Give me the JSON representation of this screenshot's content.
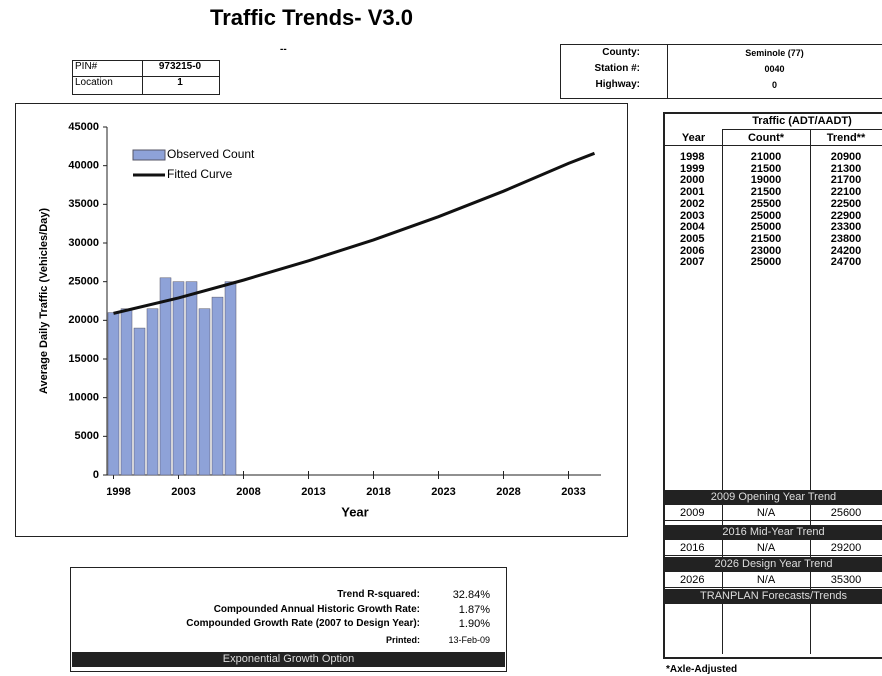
{
  "header": {
    "title": "Traffic Trends- V3.0",
    "subtitle": "--"
  },
  "pin_box": {
    "rows": [
      [
        "PIN#",
        "973215-0"
      ],
      [
        "Location",
        "1"
      ]
    ]
  },
  "station_box": {
    "rows": [
      [
        "County:",
        "Seminole (77)"
      ],
      [
        "Station #:",
        "0040"
      ],
      [
        "Highway:",
        "0"
      ]
    ]
  },
  "chart_data": {
    "type": "bar",
    "x": [
      1998,
      1999,
      2000,
      2001,
      2002,
      2003,
      2004,
      2005,
      2006,
      2007
    ],
    "series": [
      {
        "name": "Observed Count",
        "color": "#8ea2d8",
        "values": [
          21000,
          21500,
          19000,
          21500,
          25500,
          25000,
          25000,
          21500,
          23000,
          25000
        ]
      },
      {
        "name": "Fitted Curve",
        "type": "line",
        "color": "#111111",
        "x": [
          1998,
          2003,
          2008,
          2013,
          2018,
          2023,
          2028,
          2033,
          2035
        ],
        "values": [
          20900,
          22900,
          25200,
          27700,
          30400,
          33400,
          36700,
          40300,
          41600
        ]
      }
    ],
    "xlabel": "Year",
    "ylabel": "Average Daily Traffic (Vehicles/Day)",
    "xlim": [
      1997.5,
      2035.5
    ],
    "xticks": [
      1998,
      2003,
      2008,
      2013,
      2018,
      2023,
      2028,
      2033
    ],
    "ylim": [
      0,
      45000
    ],
    "yticks": [
      0,
      5000,
      10000,
      15000,
      20000,
      25000,
      30000,
      35000,
      40000,
      45000
    ],
    "legend": "upper left"
  },
  "table": {
    "group_header": "Traffic (ADT/AADT)",
    "columns": [
      "Year",
      "Count*",
      "Trend**"
    ],
    "rows": [
      [
        "1998",
        "21000",
        "20900"
      ],
      [
        "1999",
        "21500",
        "21300"
      ],
      [
        "2000",
        "19000",
        "21700"
      ],
      [
        "2001",
        "21500",
        "22100"
      ],
      [
        "2002",
        "25500",
        "22500"
      ],
      [
        "2003",
        "25000",
        "22900"
      ],
      [
        "2004",
        "25000",
        "23300"
      ],
      [
        "2005",
        "21500",
        "23800"
      ],
      [
        "2006",
        "23000",
        "24200"
      ],
      [
        "2007",
        "25000",
        "24700"
      ]
    ],
    "sections": [
      {
        "title": "2009 Opening Year Trend",
        "row": [
          "2009",
          "N/A",
          "25600"
        ]
      },
      {
        "title": "2016 Mid-Year Trend",
        "row": [
          "2016",
          "N/A",
          "29200"
        ]
      },
      {
        "title": "2026 Design Year Trend",
        "row": [
          "2026",
          "N/A",
          "35300"
        ]
      }
    ],
    "footer": "TRANPLAN Forecasts/Trends"
  },
  "stats": {
    "rows": [
      [
        "Trend R-squared:",
        "32.84%"
      ],
      [
        "Compounded Annual Historic Growth Rate:",
        "1.87%"
      ],
      [
        "Compounded Growth Rate (2007 to Design Year):",
        "1.90%"
      ]
    ],
    "printed": [
      "Printed:",
      "13-Feb-09"
    ],
    "footer": "Exponential Growth Option"
  },
  "footnote": "*Axle-Adjusted"
}
